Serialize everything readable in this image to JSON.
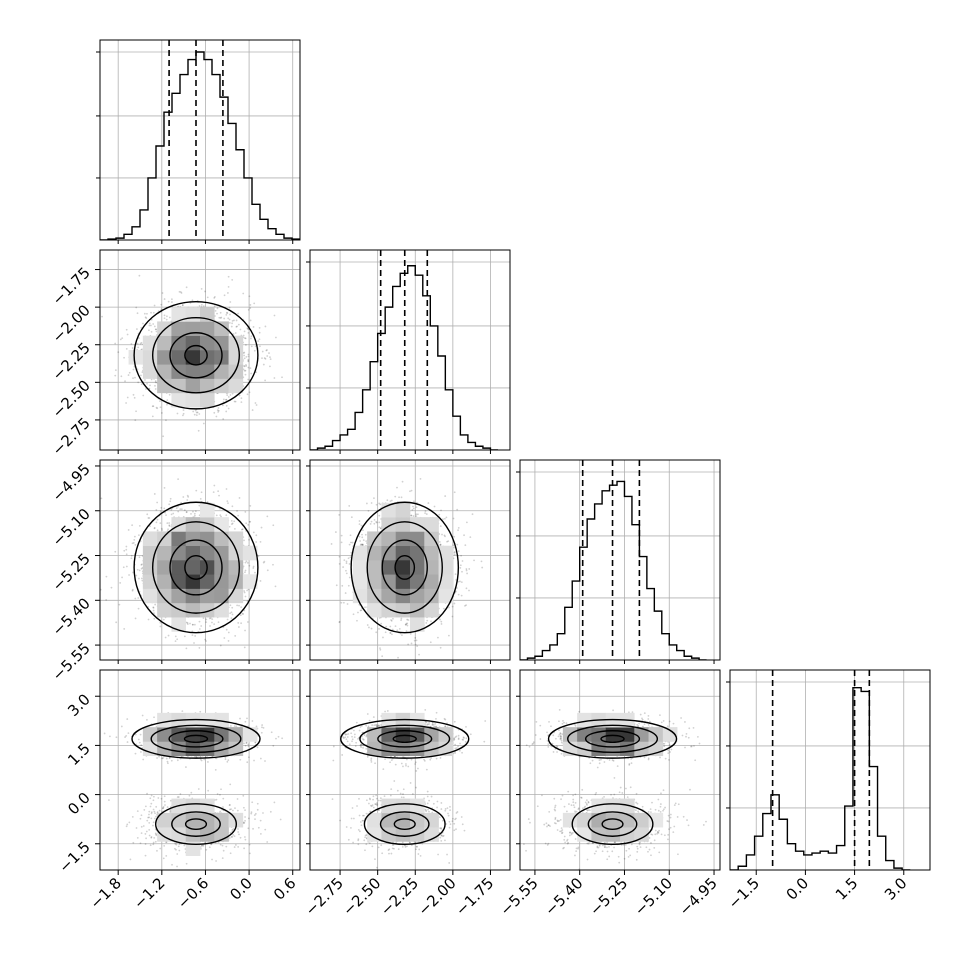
{
  "chart_data": {
    "type": "corner",
    "parameters": [
      {
        "range": [
          -2.05,
          0.7
        ],
        "ticks": [
          -1.8,
          -1.2,
          -0.6,
          0.0,
          0.6
        ],
        "tick_labels": [
          "−1.8",
          "−1.2",
          "−0.6",
          "0.0",
          "0.6"
        ]
      },
      {
        "range": [
          -2.95,
          -1.62
        ],
        "ticks": [
          -2.75,
          -2.5,
          -2.25,
          -2.0,
          -1.75
        ],
        "tick_labels": [
          "−2.75",
          "−2.50",
          "−2.25",
          "−2.00",
          "−1.75"
        ]
      },
      {
        "range": [
          -5.6,
          -4.93
        ],
        "ticks": [
          -5.55,
          -5.4,
          -5.25,
          -5.1,
          -4.95
        ],
        "tick_labels": [
          "−5.55",
          "−5.40",
          "−5.25",
          "−5.10",
          "−4.95"
        ]
      },
      {
        "range": [
          -2.3,
          3.8
        ],
        "ticks": [
          -1.5,
          0.0,
          1.5,
          3.0
        ],
        "tick_labels": [
          "−1.5",
          "0.0",
          "1.5",
          "3.0"
        ]
      }
    ],
    "histograms": [
      {
        "bin_edges": [
          -2.05,
          -1.94,
          -1.83,
          -1.72,
          -1.61,
          -1.5,
          -1.39,
          -1.28,
          -1.17,
          -1.06,
          -0.95,
          -0.84,
          -0.73,
          -0.62,
          -0.51,
          -0.4,
          -0.29,
          -0.18,
          -0.07,
          0.04,
          0.15,
          0.26,
          0.37,
          0.48,
          0.59,
          0.7
        ],
        "counts": [
          0.0,
          0.005,
          0.01,
          0.03,
          0.07,
          0.16,
          0.33,
          0.5,
          0.68,
          0.78,
          0.88,
          0.96,
          1.0,
          0.96,
          0.88,
          0.76,
          0.62,
          0.48,
          0.33,
          0.19,
          0.11,
          0.06,
          0.03,
          0.01,
          0.005
        ],
        "quantiles": [
          -1.1,
          -0.73,
          -0.36
        ]
      },
      {
        "bin_edges": [
          -2.95,
          -2.9,
          -2.85,
          -2.8,
          -2.75,
          -2.7,
          -2.65,
          -2.6,
          -2.55,
          -2.5,
          -2.45,
          -2.4,
          -2.35,
          -2.3,
          -2.25,
          -2.2,
          -2.15,
          -2.1,
          -2.05,
          -2.0,
          -1.95,
          -1.9,
          -1.85,
          -1.8,
          -1.75,
          -1.7
        ],
        "counts": [
          0.0,
          0.01,
          0.02,
          0.05,
          0.08,
          0.11,
          0.2,
          0.32,
          0.47,
          0.62,
          0.76,
          0.87,
          0.94,
          0.98,
          0.93,
          0.82,
          0.66,
          0.5,
          0.32,
          0.18,
          0.08,
          0.04,
          0.02,
          0.01,
          0.0
        ],
        "quantiles": [
          -2.48,
          -2.32,
          -2.17
        ]
      },
      {
        "bin_edges": [
          -5.6,
          -5.575,
          -5.55,
          -5.525,
          -5.5,
          -5.475,
          -5.45,
          -5.425,
          -5.4,
          -5.375,
          -5.35,
          -5.325,
          -5.3,
          -5.275,
          -5.25,
          -5.225,
          -5.2,
          -5.175,
          -5.15,
          -5.125,
          -5.1,
          -5.075,
          -5.05,
          -5.025,
          -5.0,
          -4.975
        ],
        "counts": [
          0.0,
          0.01,
          0.02,
          0.05,
          0.08,
          0.14,
          0.28,
          0.42,
          0.6,
          0.75,
          0.83,
          0.9,
          0.93,
          0.95,
          0.87,
          0.72,
          0.55,
          0.38,
          0.26,
          0.14,
          0.08,
          0.05,
          0.02,
          0.01,
          0.0
        ],
        "quantiles": [
          -5.39,
          -5.29,
          -5.2
        ]
      },
      {
        "bin_edges": [
          -2.3,
          -2.05,
          -1.8,
          -1.55,
          -1.3,
          -1.05,
          -0.8,
          -0.55,
          -0.3,
          -0.05,
          0.2,
          0.45,
          0.7,
          0.95,
          1.2,
          1.45,
          1.7,
          1.95,
          2.2,
          2.45,
          2.7,
          2.95,
          3.2
        ],
        "counts": [
          0.0,
          0.02,
          0.08,
          0.18,
          0.3,
          0.4,
          0.27,
          0.14,
          0.1,
          0.08,
          0.09,
          0.1,
          0.09,
          0.13,
          0.34,
          0.97,
          0.95,
          0.55,
          0.18,
          0.05,
          0.01,
          0.0
        ],
        "quantiles": [
          -1.0,
          1.5,
          1.95
        ]
      }
    ],
    "contour_levels": 4,
    "grid": true,
    "series_modes": {
      "p1_centers": [
        1.7,
        -0.9
      ],
      "p1_weights": [
        0.65,
        0.35
      ]
    }
  }
}
